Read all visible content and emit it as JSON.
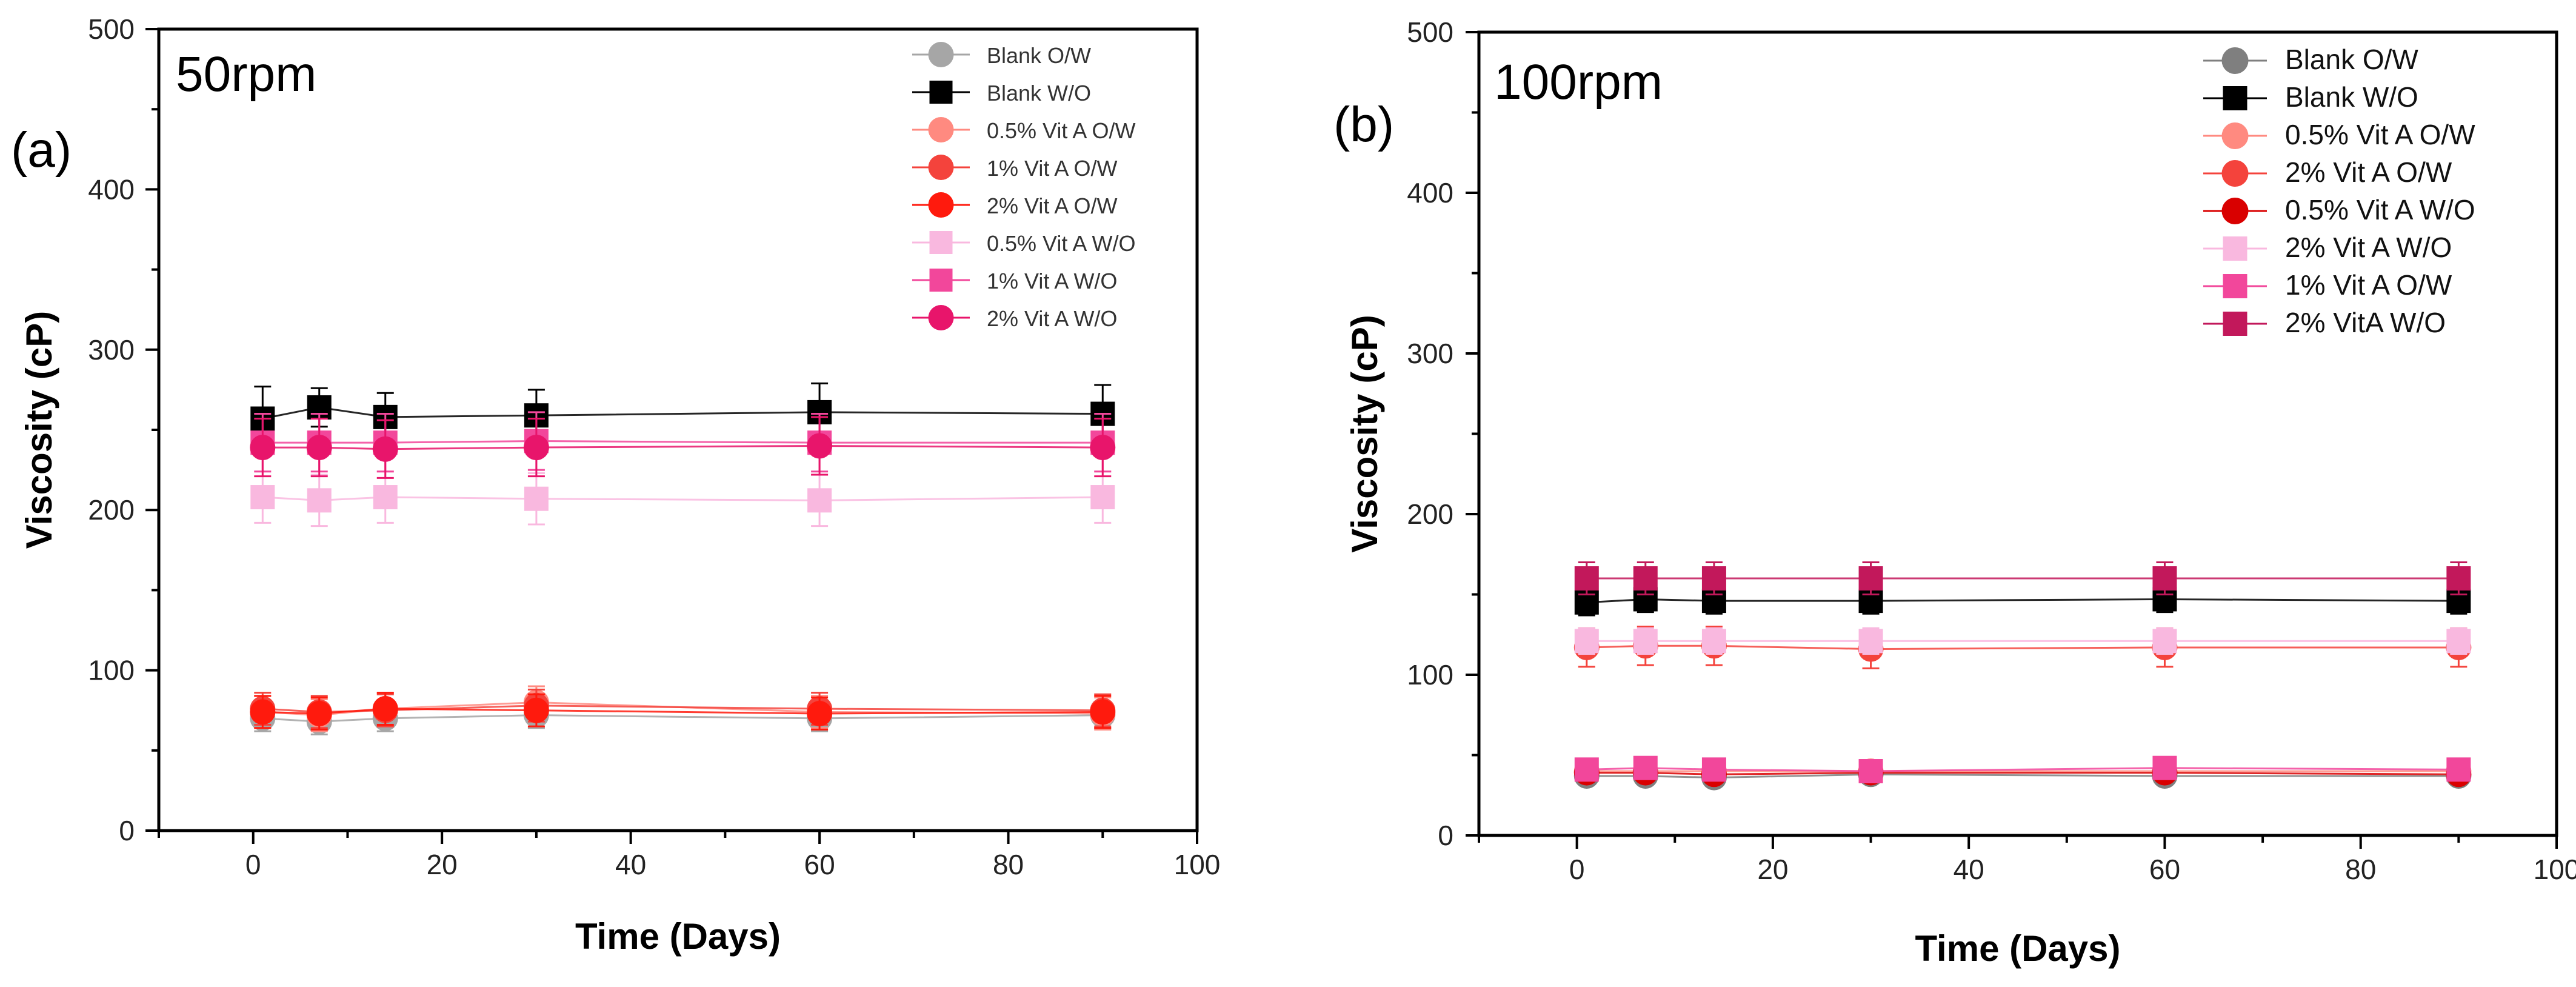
{
  "chart_data": [
    {
      "type": "line",
      "panel_label": "(a)",
      "title": "50rpm",
      "xlabel": "Time (Days)",
      "ylabel": "Viscosity (cP)",
      "xlim": [
        -10,
        100
      ],
      "ylim": [
        0,
        500
      ],
      "xticks": [
        0,
        20,
        40,
        60,
        80,
        100
      ],
      "yticks": [
        0,
        100,
        200,
        300,
        400,
        500
      ],
      "legend_position": "top-right",
      "x": [
        1,
        7,
        14,
        30,
        60,
        90
      ],
      "series": [
        {
          "name": "Blank O/W",
          "marker": "circle",
          "color": "#a6a6a6",
          "values": [
            70,
            68,
            70,
            72,
            70,
            72
          ],
          "err": [
            8,
            8,
            8,
            8,
            8,
            8
          ]
        },
        {
          "name": "Blank W/O",
          "marker": "square",
          "color": "#000000",
          "values": [
            257,
            264,
            258,
            259,
            261,
            260
          ],
          "err": [
            20,
            12,
            15,
            16,
            18,
            18
          ]
        },
        {
          "name": "0.5% Vit A O/W",
          "marker": "circle",
          "color": "#ff8a80",
          "values": [
            74,
            72,
            76,
            80,
            74,
            73
          ],
          "err": [
            10,
            10,
            10,
            10,
            10,
            10
          ]
        },
        {
          "name": "1% Vit A O/W",
          "marker": "circle",
          "color": "#f4433c",
          "values": [
            76,
            74,
            75,
            78,
            76,
            75
          ],
          "err": [
            10,
            10,
            10,
            10,
            10,
            10
          ]
        },
        {
          "name": "2% Vit A O/W",
          "marker": "circle",
          "color": "#ff1a0d",
          "values": [
            74,
            73,
            76,
            75,
            73,
            74
          ],
          "err": [
            10,
            10,
            10,
            10,
            10,
            10
          ]
        },
        {
          "name": "0.5% Vit A W/O",
          "marker": "square",
          "color": "#f9b8df",
          "values": [
            208,
            206,
            208,
            207,
            206,
            208
          ],
          "err": [
            16,
            16,
            16,
            16,
            16,
            16
          ]
        },
        {
          "name": "1% Vit A W/O",
          "marker": "square",
          "color": "#f2479b",
          "values": [
            242,
            242,
            242,
            243,
            242,
            242
          ],
          "err": [
            18,
            18,
            18,
            18,
            18,
            18
          ]
        },
        {
          "name": "2% Vit A W/O",
          "marker": "circle",
          "color": "#e8156b",
          "values": [
            239,
            239,
            238,
            239,
            240,
            239
          ],
          "err": [
            18,
            18,
            18,
            18,
            18,
            18
          ]
        }
      ]
    },
    {
      "type": "line",
      "panel_label": "(b)",
      "title": "100rpm",
      "xlabel": "Time (Days)",
      "ylabel": "Viscosity (cP)",
      "xlim": [
        -10,
        100
      ],
      "ylim": [
        0,
        500
      ],
      "xticks": [
        0,
        20,
        40,
        60,
        80,
        100
      ],
      "yticks": [
        0,
        100,
        200,
        300,
        400,
        500
      ],
      "legend_position": "top-right",
      "x": [
        1,
        7,
        14,
        30,
        60,
        90
      ],
      "series": [
        {
          "name": "Blank O/W",
          "marker": "circle",
          "color": "#7f7f7f",
          "values": [
            37,
            37,
            36,
            38,
            37,
            37
          ],
          "err": [
            4,
            4,
            4,
            4,
            4,
            4
          ]
        },
        {
          "name": "Blank W/O",
          "marker": "square",
          "color": "#000000",
          "values": [
            145,
            147,
            146,
            146,
            147,
            146
          ],
          "err": [
            8,
            8,
            8,
            8,
            8,
            8
          ]
        },
        {
          "name": "0.5% Vit A O/W",
          "marker": "circle",
          "color": "#ff8a80",
          "values": [
            40,
            40,
            40,
            40,
            40,
            40
          ],
          "err": [
            5,
            5,
            5,
            5,
            5,
            5
          ]
        },
        {
          "name": "2% Vit A O/W",
          "marker": "circle",
          "color": "#f4433c",
          "values": [
            117,
            118,
            118,
            116,
            117,
            117
          ],
          "err": [
            12,
            12,
            12,
            12,
            12,
            12
          ]
        },
        {
          "name": "0.5% Vit A W/O",
          "marker": "circle",
          "color": "#d90000",
          "values": [
            39,
            39,
            38,
            39,
            39,
            38
          ],
          "err": [
            5,
            5,
            5,
            5,
            5,
            5
          ]
        },
        {
          "name": "2% Vit A W/O",
          "marker": "square",
          "color": "#f9b8df",
          "values": [
            121,
            121,
            121,
            121,
            121,
            121
          ],
          "err": [
            8,
            8,
            8,
            8,
            8,
            8
          ]
        },
        {
          "name": "1% Vit A O/W",
          "marker": "square",
          "color": "#f2479b",
          "values": [
            41,
            42,
            41,
            40,
            42,
            41
          ],
          "err": [
            5,
            5,
            5,
            5,
            5,
            5
          ]
        },
        {
          "name": "2% VitA W/O",
          "marker": "square",
          "color": "#c2185b",
          "values": [
            160,
            160,
            160,
            160,
            160,
            160
          ],
          "err": [
            10,
            10,
            10,
            10,
            10,
            10
          ]
        }
      ]
    }
  ]
}
